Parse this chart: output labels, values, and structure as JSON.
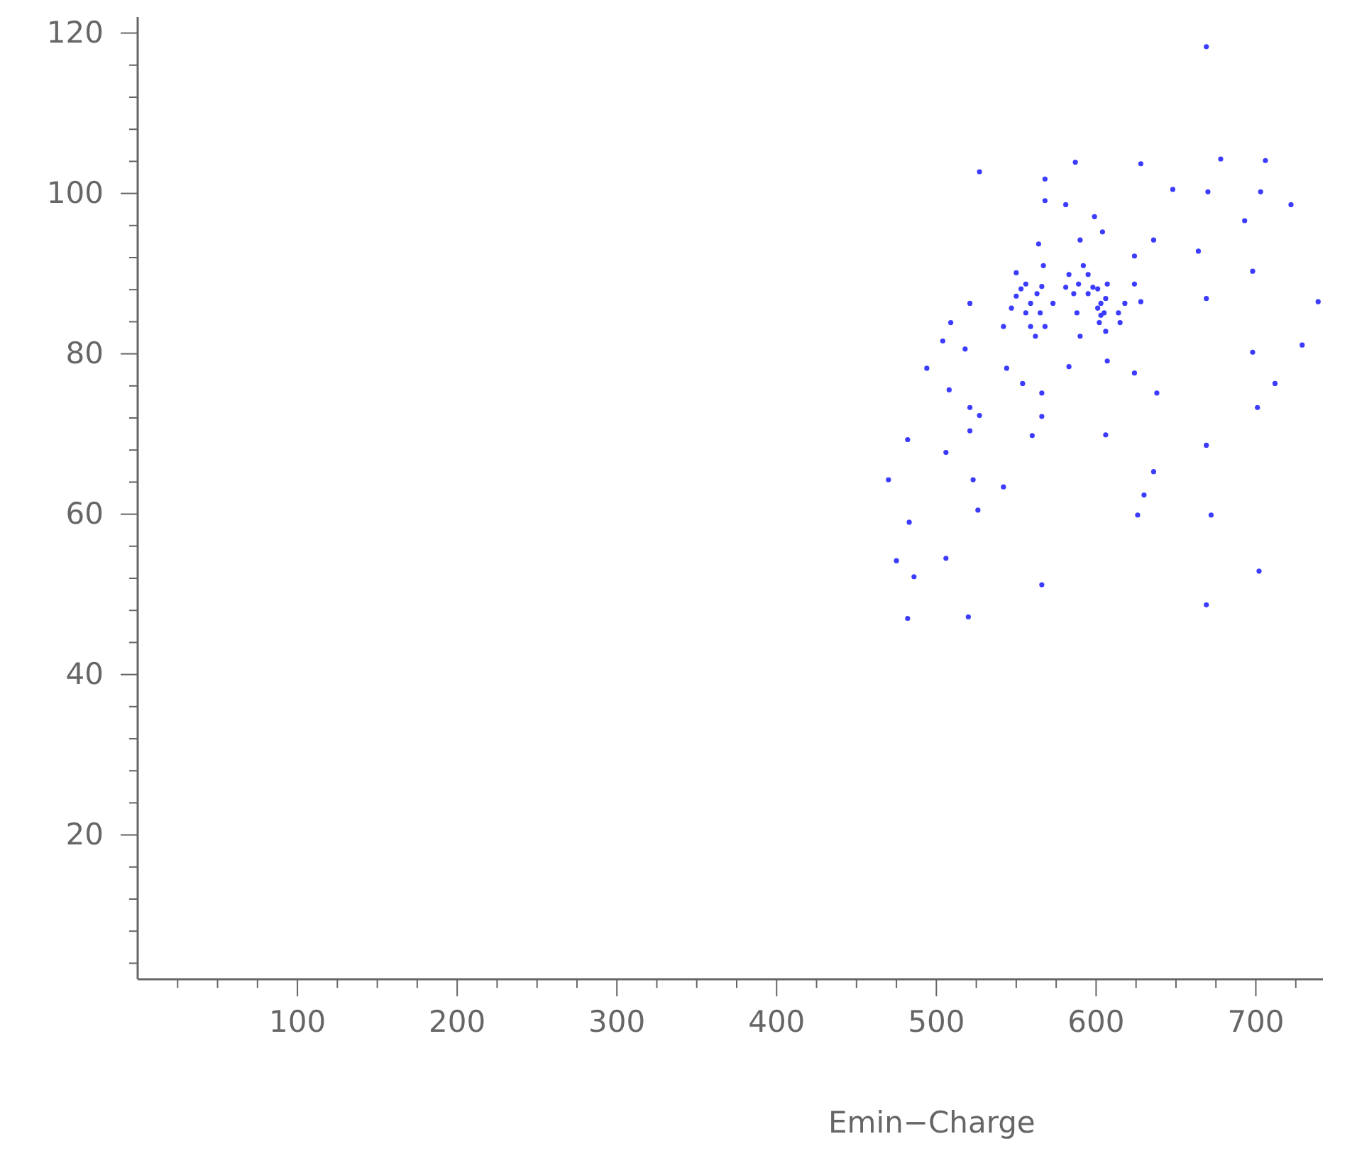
{
  "chart_data": {
    "type": "scatter",
    "xlabel": "Emin−Charge",
    "xlim": [
      0,
      742
    ],
    "ylim": [
      2,
      122
    ],
    "xticks": [
      {
        "value": 25,
        "label": null
      },
      {
        "value": 50,
        "label": null
      },
      {
        "value": 75,
        "label": null
      },
      100,
      {
        "value": 125,
        "label": null
      },
      {
        "value": 150,
        "label": null
      },
      {
        "value": 175,
        "label": null
      },
      200,
      {
        "value": 225,
        "label": null
      },
      {
        "value": 250,
        "label": null
      },
      {
        "value": 275,
        "label": null
      },
      300,
      {
        "value": 325,
        "label": null
      },
      {
        "value": 350,
        "label": null
      },
      {
        "value": 375,
        "label": null
      },
      400,
      {
        "value": 425,
        "label": null
      },
      {
        "value": 450,
        "label": null
      },
      {
        "value": 475,
        "label": null
      },
      500,
      {
        "value": 525,
        "label": null
      },
      {
        "value": 550,
        "label": null
      },
      {
        "value": 575,
        "label": null
      },
      600,
      {
        "value": 625,
        "label": null
      },
      {
        "value": 650,
        "label": null
      },
      {
        "value": 675,
        "label": null
      },
      700,
      {
        "value": 725,
        "label": null
      }
    ],
    "yticks": [
      {
        "value": 4,
        "label": null
      },
      {
        "value": 8,
        "label": null
      },
      {
        "value": 12,
        "label": null
      },
      {
        "value": 16,
        "label": null
      },
      20,
      {
        "value": 24,
        "label": null
      },
      {
        "value": 28,
        "label": null
      },
      {
        "value": 32,
        "label": null
      },
      {
        "value": 36,
        "label": null
      },
      40,
      {
        "value": 44,
        "label": null
      },
      {
        "value": 48,
        "label": null
      },
      {
        "value": 52,
        "label": null
      },
      {
        "value": 56,
        "label": null
      },
      60,
      {
        "value": 64,
        "label": null
      },
      {
        "value": 68,
        "label": null
      },
      {
        "value": 72,
        "label": null
      },
      {
        "value": 76,
        "label": null
      },
      80,
      {
        "value": 84,
        "label": null
      },
      {
        "value": 88,
        "label": null
      },
      {
        "value": 92,
        "label": null
      },
      {
        "value": 96,
        "label": null
      },
      100,
      {
        "value": 104,
        "label": null
      },
      {
        "value": 108,
        "label": null
      },
      {
        "value": 112,
        "label": null
      },
      {
        "value": 116,
        "label": null
      },
      120
    ],
    "grid": false,
    "marker": "circle",
    "series": [
      {
        "color": "#3c3cff",
        "x": [
          669,
          527,
          568,
          568,
          587,
          628,
          599,
          648,
          678,
          706,
          703,
          722,
          693,
          670,
          664,
          636,
          698,
          669,
          739,
          729,
          698,
          712,
          701,
          669,
          672,
          669,
          702,
          636,
          626,
          630,
          638,
          624,
          606,
          607,
          628,
          624,
          566,
          520,
          482,
          486,
          475,
          483,
          506,
          470,
          523,
          542,
          526,
          506,
          482,
          494,
          504,
          509,
          518,
          521,
          521,
          508,
          527,
          521,
          542,
          544,
          554,
          566,
          566,
          560,
          583,
          590,
          550,
          567,
          564,
          581,
          604,
          590,
          553,
          559,
          565,
          556,
          563,
          568,
          559,
          547,
          550,
          566,
          562,
          573,
          556,
          583,
          589,
          595,
          601,
          603,
          605,
          602,
          606,
          586,
          592,
          598,
          607,
          614,
          615,
          606,
          581,
          601,
          618,
          624,
          588,
          595,
          603
        ],
        "values": [
          118.3,
          102.7,
          101.8,
          99.1,
          103.9,
          103.7,
          97.1,
          100.5,
          104.3,
          104.1,
          100.2,
          98.6,
          96.6,
          100.2,
          92.8,
          94.2,
          90.3,
          86.9,
          86.5,
          81.1,
          80.2,
          76.3,
          73.3,
          68.6,
          59.9,
          48.7,
          52.9,
          65.3,
          59.9,
          62.4,
          75.1,
          77.6,
          69.9,
          79.1,
          86.5,
          92.2,
          51.2,
          47.2,
          47.0,
          52.2,
          54.2,
          59.0,
          54.5,
          64.3,
          64.3,
          63.4,
          60.5,
          67.7,
          69.3,
          78.2,
          81.6,
          83.9,
          80.6,
          73.3,
          70.4,
          75.5,
          72.3,
          86.3,
          83.4,
          78.2,
          76.3,
          72.2,
          75.1,
          69.8,
          78.4,
          82.2,
          90.1,
          91.0,
          93.7,
          98.6,
          95.2,
          94.2,
          88.1,
          86.3,
          85.1,
          85.1,
          87.5,
          83.4,
          83.4,
          85.7,
          87.2,
          88.4,
          82.2,
          86.3,
          88.7,
          89.9,
          88.7,
          89.9,
          88.1,
          86.3,
          85.1,
          83.9,
          86.9,
          87.5,
          91.0,
          88.3,
          88.7,
          85.1,
          83.9,
          82.8,
          88.3,
          85.7,
          86.3,
          88.7,
          85.1,
          87.5,
          84.8
        ]
      }
    ]
  }
}
